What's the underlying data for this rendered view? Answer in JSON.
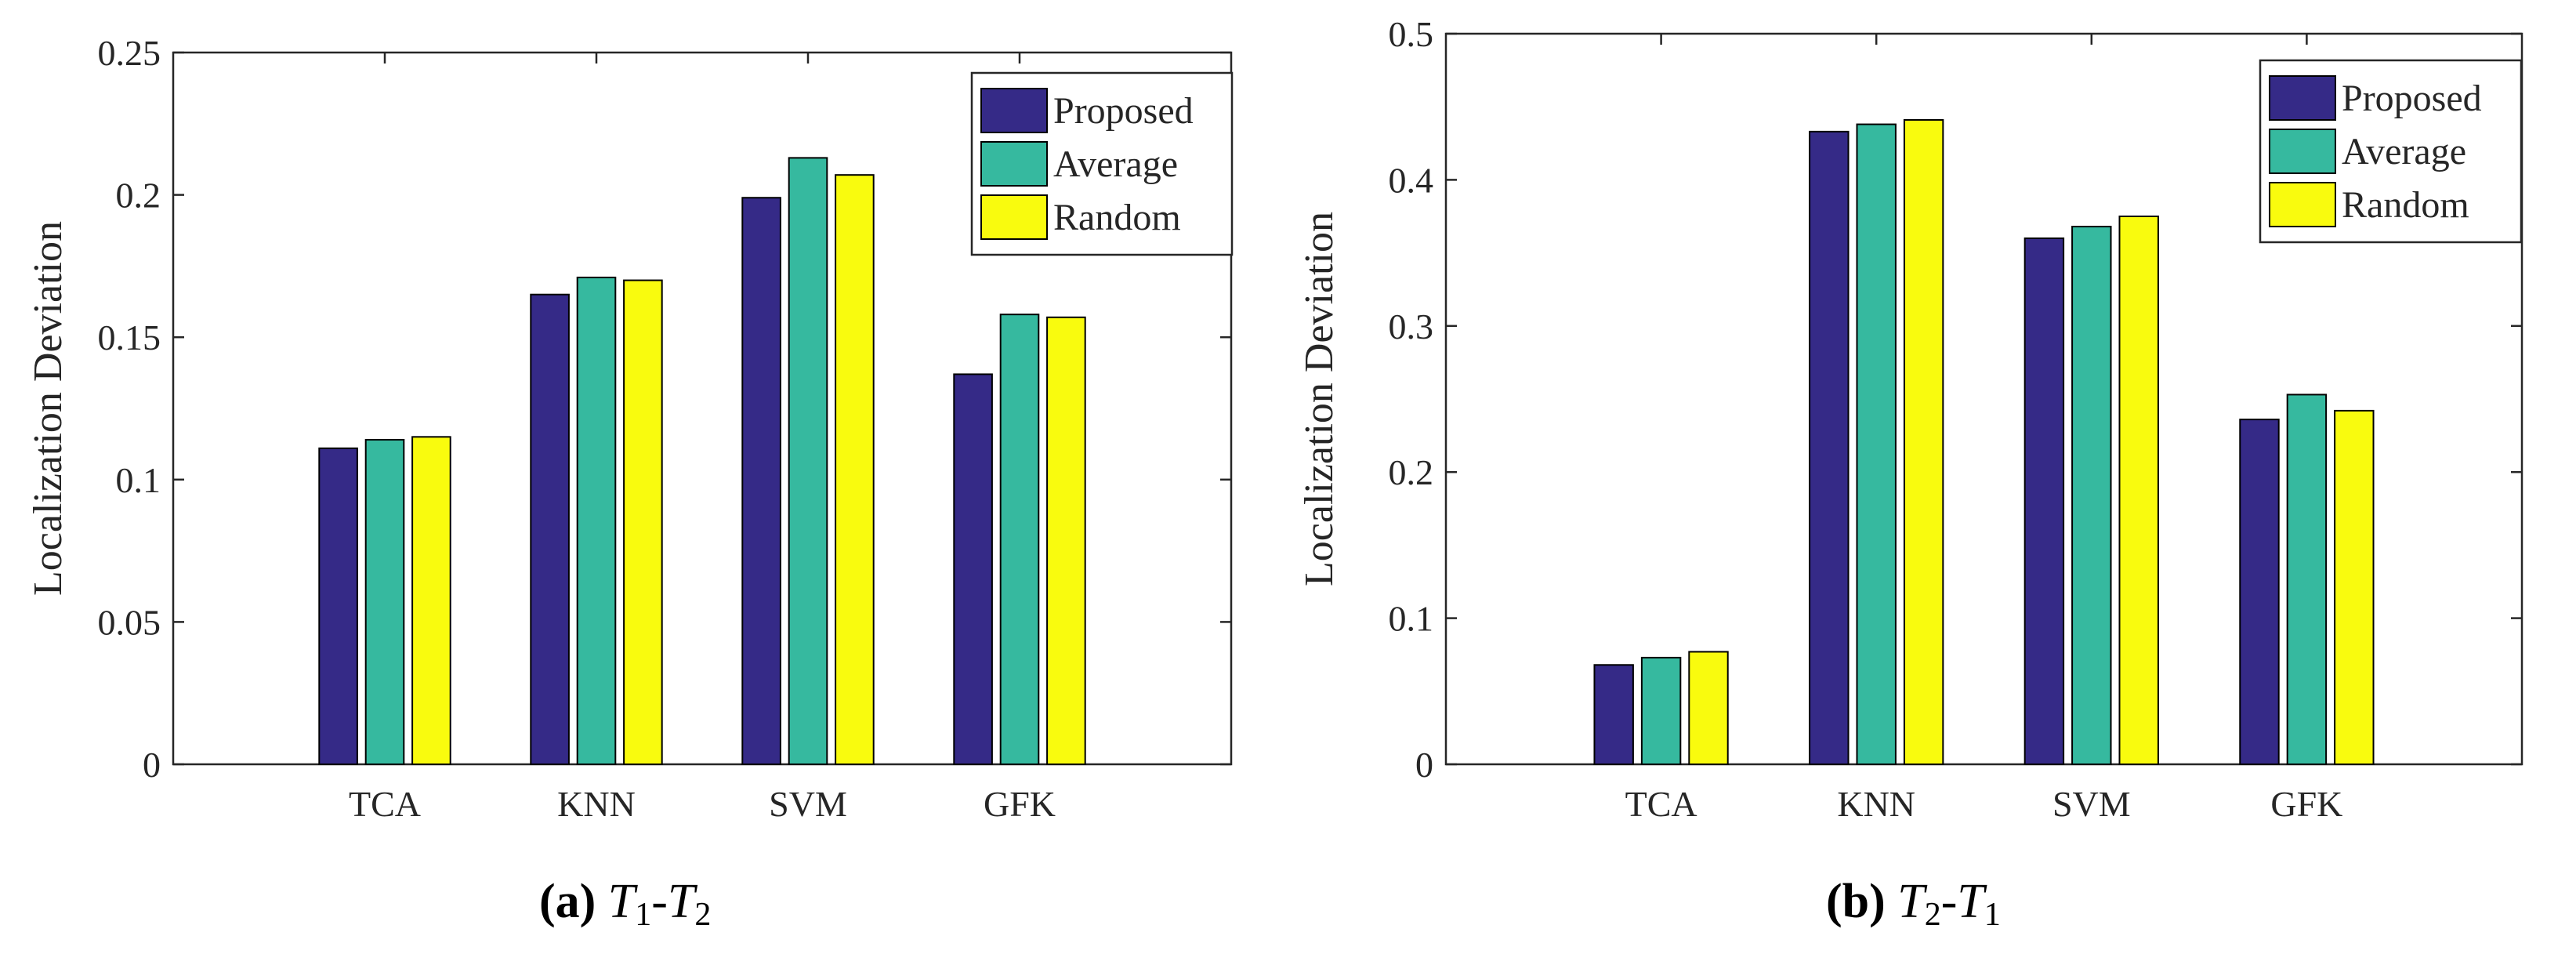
{
  "colors": {
    "Proposed": "#352a87",
    "Average": "#36b99f",
    "Random": "#f9fb0e"
  },
  "chart_data": [
    {
      "type": "bar",
      "panel": "a",
      "caption": {
        "label": "(a)",
        "subtitle": "T1-T2",
        "sub_a": "T",
        "idx_a": "1",
        "dash": "-",
        "sub_b": "T",
        "idx_b": "2"
      },
      "categories": [
        "TCA",
        "KNN",
        "SVM",
        "GFK"
      ],
      "series": [
        {
          "name": "Proposed",
          "values": [
            0.111,
            0.165,
            0.199,
            0.137
          ]
        },
        {
          "name": "Average",
          "values": [
            0.114,
            0.171,
            0.213,
            0.158
          ]
        },
        {
          "name": "Random",
          "values": [
            0.115,
            0.17,
            0.207,
            0.157
          ]
        }
      ],
      "ylabel": "Localization Deviation",
      "xlabel": "",
      "ylim": [
        0,
        0.25
      ],
      "yticks": [
        0,
        0.05,
        0.1,
        0.15,
        0.2,
        0.25
      ],
      "ytick_labels": [
        "0",
        "0.05",
        "0.1",
        "0.15",
        "0.2",
        "0.25"
      ],
      "legend": "top-right",
      "grid": false
    },
    {
      "type": "bar",
      "panel": "b",
      "caption": {
        "label": "(b)",
        "subtitle": "T2-T1",
        "sub_a": "T",
        "idx_a": "2",
        "dash": "-",
        "sub_b": "T",
        "idx_b": "1"
      },
      "categories": [
        "TCA",
        "KNN",
        "SVM",
        "GFK"
      ],
      "series": [
        {
          "name": "Proposed",
          "values": [
            0.068,
            0.433,
            0.36,
            0.236
          ]
        },
        {
          "name": "Average",
          "values": [
            0.073,
            0.438,
            0.368,
            0.253
          ]
        },
        {
          "name": "Random",
          "values": [
            0.077,
            0.441,
            0.375,
            0.242
          ]
        }
      ],
      "ylabel": "Localization Deviation",
      "xlabel": "",
      "ylim": [
        0,
        0.5
      ],
      "yticks": [
        0,
        0.1,
        0.2,
        0.3,
        0.4,
        0.5
      ],
      "ytick_labels": [
        "0",
        "0.1",
        "0.2",
        "0.3",
        "0.4",
        "0.5"
      ],
      "legend": "top-right",
      "grid": false
    }
  ]
}
